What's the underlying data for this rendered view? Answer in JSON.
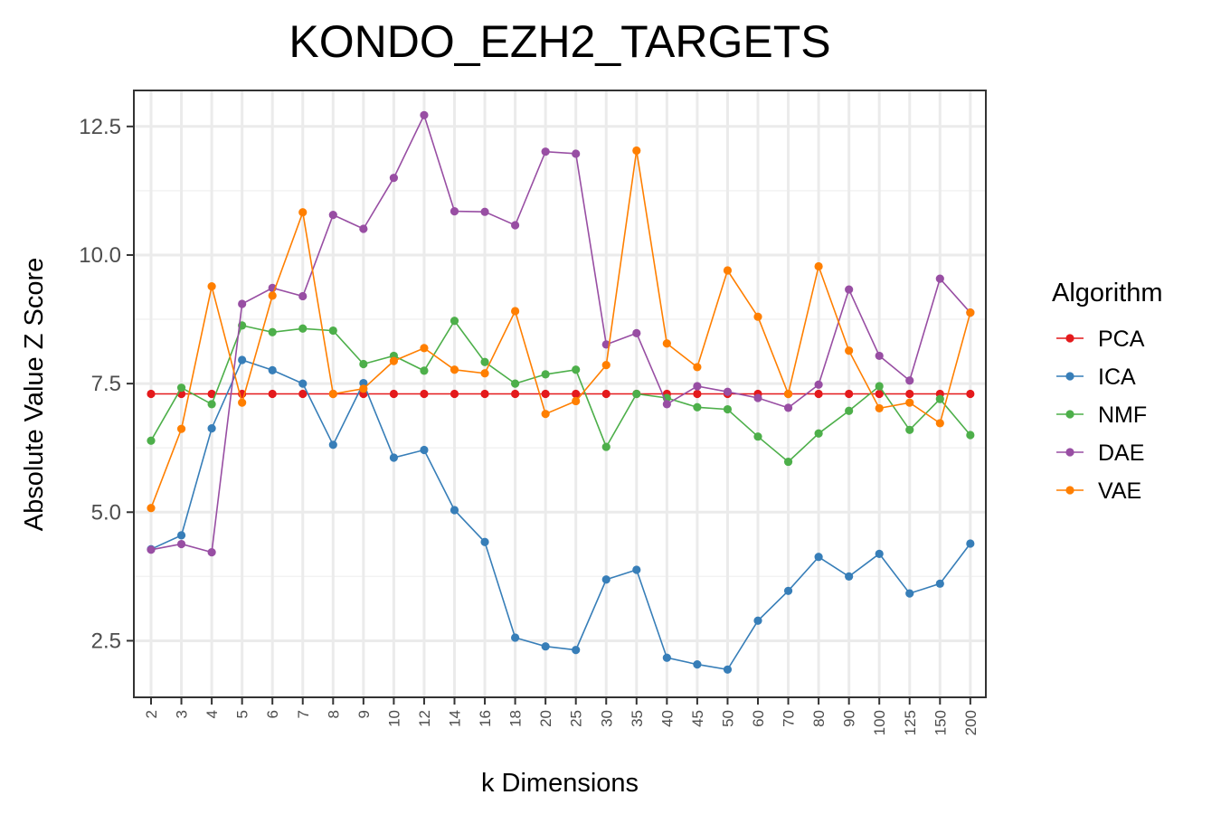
{
  "chart_data": {
    "type": "line",
    "title": "KONDO_EZH2_TARGETS",
    "xlabel": "k Dimensions",
    "ylabel": "Absolute Value Z Score",
    "categories": [
      "2",
      "3",
      "4",
      "5",
      "6",
      "7",
      "8",
      "9",
      "10",
      "12",
      "14",
      "16",
      "18",
      "20",
      "25",
      "30",
      "35",
      "40",
      "45",
      "50",
      "60",
      "70",
      "80",
      "90",
      "100",
      "125",
      "150",
      "200"
    ],
    "ylim": [
      1.4,
      13.2
    ],
    "yticks": [
      2.5,
      5.0,
      7.5,
      10.0,
      12.5
    ],
    "ytick_labels": [
      "2.5",
      "5.0",
      "7.5",
      "10.0",
      "12.5"
    ],
    "grid": true,
    "legend": {
      "title": "Algorithm",
      "position": "right"
    },
    "series": [
      {
        "name": "PCA",
        "color": "#E41A1C",
        "values": [
          7.3,
          7.3,
          7.3,
          7.3,
          7.3,
          7.3,
          7.3,
          7.3,
          7.3,
          7.3,
          7.3,
          7.3,
          7.3,
          7.3,
          7.3,
          7.3,
          7.3,
          7.3,
          7.3,
          7.3,
          7.3,
          7.3,
          7.3,
          7.3,
          7.3,
          7.3,
          7.3,
          7.3
        ]
      },
      {
        "name": "ICA",
        "color": "#377EB8",
        "values": [
          4.28,
          4.55,
          6.63,
          7.96,
          7.76,
          7.5,
          6.31,
          7.51,
          6.06,
          6.21,
          5.04,
          4.42,
          2.56,
          2.39,
          2.32,
          3.69,
          3.88,
          2.17,
          2.04,
          1.94,
          2.89,
          3.47,
          4.13,
          3.75,
          4.19,
          3.42,
          3.61,
          4.39
        ]
      },
      {
        "name": "NMF",
        "color": "#4DAF4A",
        "values": [
          6.39,
          7.42,
          7.1,
          8.63,
          8.5,
          8.57,
          8.53,
          7.88,
          8.04,
          7.75,
          8.72,
          7.92,
          7.5,
          7.68,
          7.77,
          6.27,
          7.3,
          7.22,
          7.04,
          7.0,
          6.47,
          5.98,
          6.53,
          6.97,
          7.45,
          6.6,
          7.2,
          6.5
        ]
      },
      {
        "name": "DAE",
        "color": "#984EA3",
        "values": [
          4.27,
          4.38,
          4.22,
          9.05,
          9.36,
          9.2,
          10.78,
          10.51,
          11.5,
          12.72,
          10.85,
          10.84,
          10.58,
          12.01,
          11.97,
          8.26,
          8.48,
          7.1,
          7.45,
          7.34,
          7.22,
          7.03,
          7.48,
          9.33,
          8.04,
          7.56,
          9.54,
          8.88
        ]
      },
      {
        "name": "VAE",
        "color": "#FF7F00",
        "values": [
          5.08,
          6.62,
          9.39,
          7.13,
          9.21,
          10.83,
          7.3,
          7.4,
          7.94,
          8.19,
          7.77,
          7.7,
          8.91,
          6.91,
          7.16,
          7.86,
          12.03,
          8.28,
          7.82,
          9.7,
          8.8,
          7.3,
          9.78,
          8.14,
          7.02,
          7.13,
          6.73,
          8.88
        ]
      }
    ]
  }
}
